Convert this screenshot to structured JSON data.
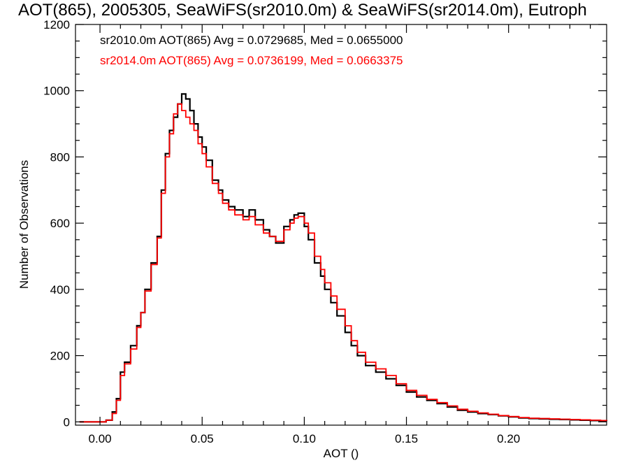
{
  "chart_data": {
    "type": "line",
    "title": "AOT(865), 2005305, SeaWiFS(sr2010.0m) & SeaWiFS(sr2014.0m), Eutroph",
    "xlabel": "AOT ()",
    "ylabel": "Number of Observations",
    "xlim": [
      -0.012,
      0.248
    ],
    "ylim": [
      -10,
      1200
    ],
    "xticks": [
      0.0,
      0.05,
      0.1,
      0.15,
      0.2
    ],
    "xtick_labels": [
      "0.00",
      "0.05",
      "0.10",
      "0.15",
      "0.20"
    ],
    "yticks": [
      0,
      200,
      400,
      600,
      800,
      1000,
      1200
    ],
    "ytick_labels": [
      "0",
      "200",
      "400",
      "600",
      "800",
      "1000",
      "1200"
    ],
    "grid": false,
    "legend_position": "top-left",
    "series": [
      {
        "name": "sr2010.0m",
        "legend": "sr2010.0m AOT(865) Avg = 0.0729685, Med = 0.0655000",
        "color": "#000000",
        "points": [
          [
            -0.01,
            0
          ],
          [
            0,
            0
          ],
          [
            0.003,
            5
          ],
          [
            0.006,
            30
          ],
          [
            0.008,
            70
          ],
          [
            0.01,
            150
          ],
          [
            0.012,
            180
          ],
          [
            0.015,
            230
          ],
          [
            0.018,
            290
          ],
          [
            0.02,
            330
          ],
          [
            0.022,
            400
          ],
          [
            0.025,
            480
          ],
          [
            0.028,
            560
          ],
          [
            0.03,
            700
          ],
          [
            0.032,
            810
          ],
          [
            0.034,
            880
          ],
          [
            0.036,
            920
          ],
          [
            0.038,
            960
          ],
          [
            0.04,
            990
          ],
          [
            0.042,
            975
          ],
          [
            0.044,
            940
          ],
          [
            0.046,
            900
          ],
          [
            0.048,
            860
          ],
          [
            0.05,
            830
          ],
          [
            0.052,
            790
          ],
          [
            0.055,
            730
          ],
          [
            0.058,
            700
          ],
          [
            0.06,
            670
          ],
          [
            0.063,
            650
          ],
          [
            0.066,
            640
          ],
          [
            0.07,
            620
          ],
          [
            0.073,
            640
          ],
          [
            0.076,
            610
          ],
          [
            0.08,
            580
          ],
          [
            0.083,
            560
          ],
          [
            0.086,
            540
          ],
          [
            0.09,
            590
          ],
          [
            0.093,
            610
          ],
          [
            0.095,
            625
          ],
          [
            0.097,
            630
          ],
          [
            0.1,
            590
          ],
          [
            0.102,
            550
          ],
          [
            0.105,
            480
          ],
          [
            0.108,
            440
          ],
          [
            0.11,
            400
          ],
          [
            0.113,
            360
          ],
          [
            0.116,
            320
          ],
          [
            0.12,
            270
          ],
          [
            0.123,
            230
          ],
          [
            0.126,
            200
          ],
          [
            0.13,
            170
          ],
          [
            0.135,
            150
          ],
          [
            0.14,
            130
          ],
          [
            0.145,
            110
          ],
          [
            0.15,
            90
          ],
          [
            0.155,
            75
          ],
          [
            0.16,
            65
          ],
          [
            0.165,
            55
          ],
          [
            0.17,
            45
          ],
          [
            0.175,
            35
          ],
          [
            0.18,
            30
          ],
          [
            0.185,
            25
          ],
          [
            0.19,
            22
          ],
          [
            0.195,
            18
          ],
          [
            0.2,
            15
          ],
          [
            0.205,
            12
          ],
          [
            0.21,
            10
          ],
          [
            0.215,
            9
          ],
          [
            0.22,
            8
          ],
          [
            0.225,
            7
          ],
          [
            0.23,
            6
          ],
          [
            0.235,
            5
          ],
          [
            0.24,
            4
          ],
          [
            0.245,
            3
          ],
          [
            0.248,
            2
          ]
        ]
      },
      {
        "name": "sr2014.0m",
        "legend": "sr2014.0m AOT(865) Avg = 0.0736199, Med = 0.0663375",
        "color": "#ff0000",
        "points": [
          [
            -0.01,
            0
          ],
          [
            0,
            0
          ],
          [
            0.003,
            5
          ],
          [
            0.006,
            25
          ],
          [
            0.008,
            65
          ],
          [
            0.01,
            140
          ],
          [
            0.012,
            175
          ],
          [
            0.015,
            220
          ],
          [
            0.018,
            285
          ],
          [
            0.02,
            330
          ],
          [
            0.022,
            395
          ],
          [
            0.025,
            475
          ],
          [
            0.028,
            555
          ],
          [
            0.03,
            690
          ],
          [
            0.032,
            800
          ],
          [
            0.034,
            870
          ],
          [
            0.036,
            930
          ],
          [
            0.038,
            960
          ],
          [
            0.04,
            940
          ],
          [
            0.042,
            920
          ],
          [
            0.044,
            900
          ],
          [
            0.046,
            880
          ],
          [
            0.048,
            840
          ],
          [
            0.05,
            810
          ],
          [
            0.052,
            770
          ],
          [
            0.055,
            720
          ],
          [
            0.058,
            690
          ],
          [
            0.06,
            660
          ],
          [
            0.063,
            640
          ],
          [
            0.066,
            625
          ],
          [
            0.07,
            610
          ],
          [
            0.073,
            620
          ],
          [
            0.076,
            595
          ],
          [
            0.08,
            570
          ],
          [
            0.083,
            560
          ],
          [
            0.086,
            545
          ],
          [
            0.09,
            580
          ],
          [
            0.093,
            600
          ],
          [
            0.095,
            615
          ],
          [
            0.097,
            620
          ],
          [
            0.1,
            600
          ],
          [
            0.102,
            570
          ],
          [
            0.105,
            500
          ],
          [
            0.108,
            460
          ],
          [
            0.11,
            420
          ],
          [
            0.113,
            380
          ],
          [
            0.116,
            340
          ],
          [
            0.12,
            290
          ],
          [
            0.123,
            245
          ],
          [
            0.126,
            210
          ],
          [
            0.13,
            180
          ],
          [
            0.135,
            160
          ],
          [
            0.14,
            140
          ],
          [
            0.145,
            115
          ],
          [
            0.15,
            95
          ],
          [
            0.155,
            80
          ],
          [
            0.16,
            68
          ],
          [
            0.165,
            58
          ],
          [
            0.17,
            48
          ],
          [
            0.175,
            38
          ],
          [
            0.18,
            32
          ],
          [
            0.185,
            27
          ],
          [
            0.19,
            23
          ],
          [
            0.195,
            19
          ],
          [
            0.2,
            16
          ],
          [
            0.205,
            13
          ],
          [
            0.21,
            11
          ],
          [
            0.215,
            10
          ],
          [
            0.22,
            9
          ],
          [
            0.225,
            8
          ],
          [
            0.23,
            7
          ],
          [
            0.235,
            6
          ],
          [
            0.24,
            5
          ],
          [
            0.245,
            4
          ],
          [
            0.248,
            3
          ]
        ]
      }
    ]
  }
}
